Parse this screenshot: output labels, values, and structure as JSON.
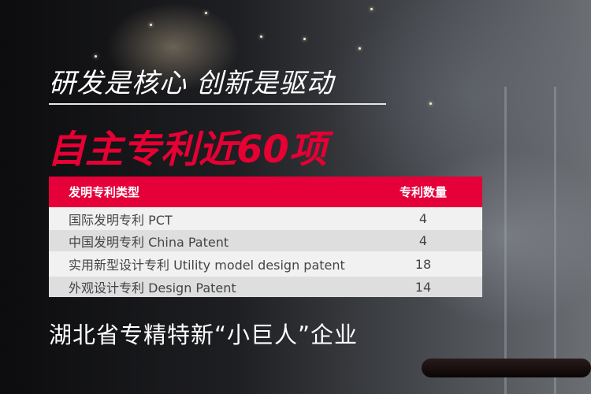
{
  "slogan": "研发是核心 创新是驱动",
  "headline": "自主专利近60项",
  "table": {
    "headers": [
      "发明专利类型",
      "专利数量"
    ],
    "rows": [
      {
        "type": "国际发明专利   PCT",
        "count": "4"
      },
      {
        "type": "中国发明专利   China Patent",
        "count": "4"
      },
      {
        "type": "实用新型设计专利  Utility model design patent",
        "count": "18"
      },
      {
        "type": "外观设计专利  Design Patent",
        "count": "14"
      }
    ]
  },
  "footer": "湖北省专精特新“小巨人”企业",
  "colors": {
    "accent": "#e5003a",
    "text": "#ffffff"
  }
}
